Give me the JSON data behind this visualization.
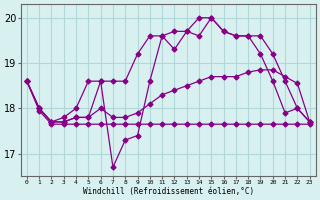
{
  "xlabel": "Windchill (Refroidissement éolien,°C)",
  "background_color": "#d8f0f0",
  "grid_color": "#b0d8d8",
  "line_color": "#880088",
  "x_hours": [
    0,
    1,
    2,
    3,
    4,
    5,
    6,
    7,
    8,
    9,
    10,
    11,
    12,
    13,
    14,
    15,
    16,
    17,
    18,
    19,
    20,
    21,
    22,
    23
  ],
  "y_main": [
    18.6,
    18.0,
    17.7,
    17.7,
    17.8,
    17.8,
    18.6,
    16.7,
    17.3,
    17.4,
    18.6,
    19.6,
    19.3,
    19.7,
    19.6,
    20.0,
    19.7,
    19.6,
    19.6,
    19.2,
    18.6,
    17.9,
    18.0,
    17.7
  ],
  "y_min": [
    18.6,
    17.95,
    17.65,
    17.65,
    17.65,
    17.65,
    17.65,
    17.65,
    17.65,
    17.65,
    17.65,
    17.65,
    17.65,
    17.65,
    17.65,
    17.65,
    17.65,
    17.65,
    17.65,
    17.65,
    17.65,
    17.65,
    17.65,
    17.65
  ],
  "y_max": [
    18.6,
    18.0,
    17.7,
    17.8,
    18.0,
    18.6,
    18.6,
    18.6,
    18.6,
    19.2,
    19.6,
    19.6,
    19.7,
    19.7,
    20.0,
    20.0,
    19.7,
    19.6,
    19.6,
    19.6,
    19.2,
    18.6,
    18.0,
    17.7
  ],
  "y_avg": [
    18.6,
    18.0,
    17.7,
    17.7,
    17.8,
    17.8,
    18.0,
    17.8,
    17.8,
    17.9,
    18.1,
    18.3,
    18.4,
    18.5,
    18.6,
    18.7,
    18.7,
    18.7,
    18.8,
    18.85,
    18.85,
    18.7,
    18.55,
    17.7
  ],
  "ylim": [
    16.5,
    20.3
  ],
  "yticks": [
    17,
    18,
    19,
    20
  ],
  "xtick_labels": [
    "0",
    "1",
    "2",
    "3",
    "4",
    "5",
    "6",
    "7",
    "8",
    "9",
    "10",
    "11",
    "12",
    "13",
    "14",
    "15",
    "16",
    "17",
    "18",
    "19",
    "20",
    "21",
    "22",
    "23"
  ]
}
